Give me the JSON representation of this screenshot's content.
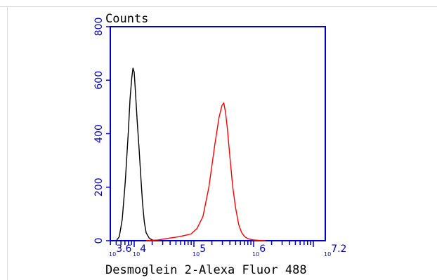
{
  "chart_data": {
    "type": "line",
    "title": "",
    "ylabel": "Counts",
    "xlabel": "Desmoglein 2-Alexa Fluor 488",
    "x_scale": "log10",
    "xlim_log10": [
      3.6,
      7.2
    ],
    "ylim": [
      0,
      800
    ],
    "y_ticks": [
      0,
      200,
      400,
      600,
      800
    ],
    "x_tick_labels": [
      {
        "base": "10",
        "exp": "3.6",
        "pos": 3.6
      },
      {
        "base": "10",
        "exp": "4",
        "pos": 4
      },
      {
        "base": "10",
        "exp": "5",
        "pos": 5
      },
      {
        "base": "10",
        "exp": "6",
        "pos": 6
      },
      {
        "base": "10",
        "exp": "7.2",
        "pos": 7.2
      }
    ],
    "grid": false,
    "legend": "none",
    "series": [
      {
        "color": "#000000",
        "x_log10": [
          3.7,
          3.75,
          3.8,
          3.85,
          3.9,
          3.93,
          3.96,
          3.98,
          4.0,
          4.02,
          4.05,
          4.08,
          4.11,
          4.14,
          4.17,
          4.2,
          4.25,
          4.3,
          4.35,
          4.4
        ],
        "values": [
          0,
          15,
          80,
          220,
          400,
          530,
          610,
          645,
          630,
          560,
          450,
          350,
          240,
          140,
          70,
          30,
          10,
          3,
          1,
          0
        ]
      },
      {
        "color": "#ff0000",
        "x_log10": [
          4.2,
          4.4,
          4.6,
          4.75,
          4.85,
          4.95,
          5.05,
          5.15,
          5.25,
          5.35,
          5.42,
          5.47,
          5.5,
          5.53,
          5.56,
          5.6,
          5.65,
          5.7,
          5.75,
          5.8,
          5.85,
          5.9,
          5.95,
          6.0,
          6.1,
          6.2
        ],
        "values": [
          0,
          3,
          10,
          15,
          20,
          25,
          45,
          90,
          200,
          360,
          460,
          505,
          515,
          480,
          420,
          320,
          200,
          120,
          60,
          30,
          15,
          8,
          5,
          3,
          1,
          0
        ]
      }
    ]
  }
}
